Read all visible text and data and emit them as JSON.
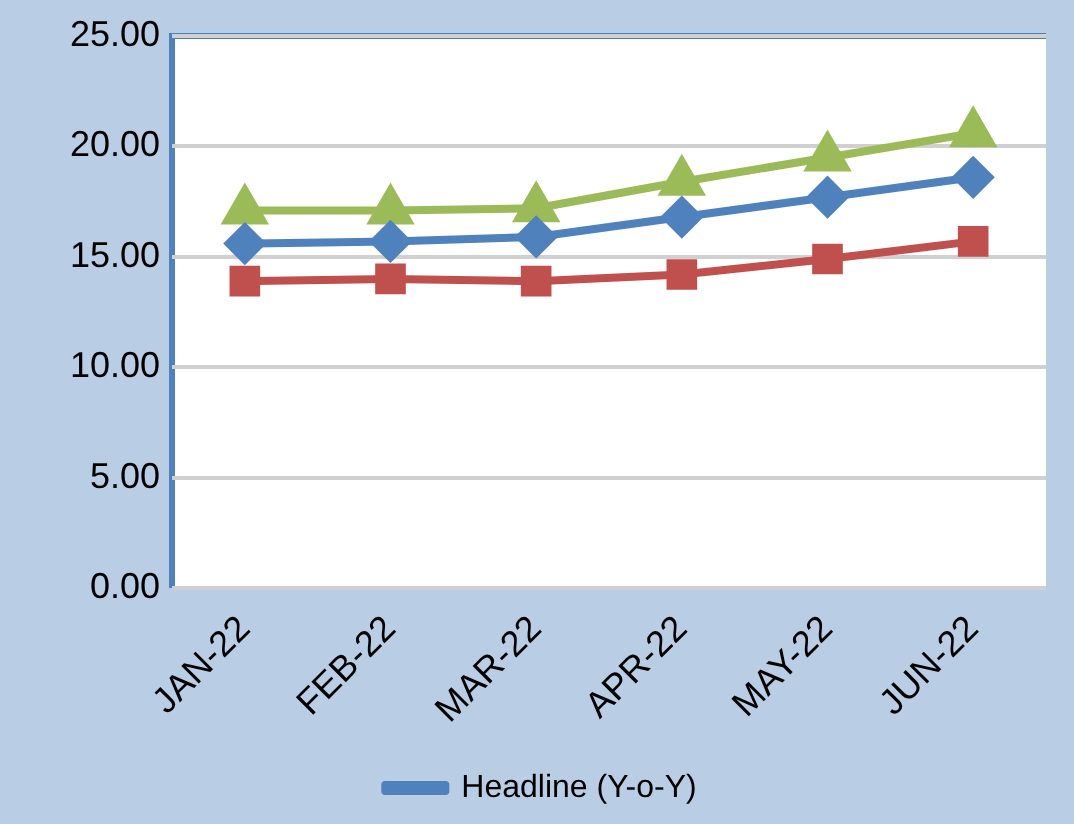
{
  "chart_data": {
    "type": "line",
    "categories": [
      "JAN-22",
      "FEB-22",
      "MAR-22",
      "APR-22",
      "MAY-22",
      "JUN-22"
    ],
    "series": [
      {
        "name": "Headline (Y-o-Y)",
        "color": "#4f81bd",
        "marker": "diamond",
        "values": [
          15.6,
          15.7,
          15.9,
          16.8,
          17.7,
          18.6
        ]
      },
      {
        "color": "#c0504d",
        "marker": "square",
        "values": [
          13.9,
          14.0,
          13.9,
          14.2,
          14.9,
          15.7
        ]
      },
      {
        "color": "#9bbb59",
        "marker": "triangle",
        "values": [
          17.1,
          17.1,
          17.2,
          18.4,
          19.5,
          20.6
        ]
      }
    ],
    "ylim": [
      0,
      25
    ],
    "yticks": [
      {
        "value": 0,
        "label": "0.00"
      },
      {
        "value": 5,
        "label": "5.00"
      },
      {
        "value": 10,
        "label": "10.00"
      },
      {
        "value": 15,
        "label": "15.00"
      },
      {
        "value": 20,
        "label": "20.00"
      },
      {
        "value": 25,
        "label": "25.00"
      }
    ],
    "grid": "y",
    "legend": "bottom",
    "line_style": "solid"
  }
}
